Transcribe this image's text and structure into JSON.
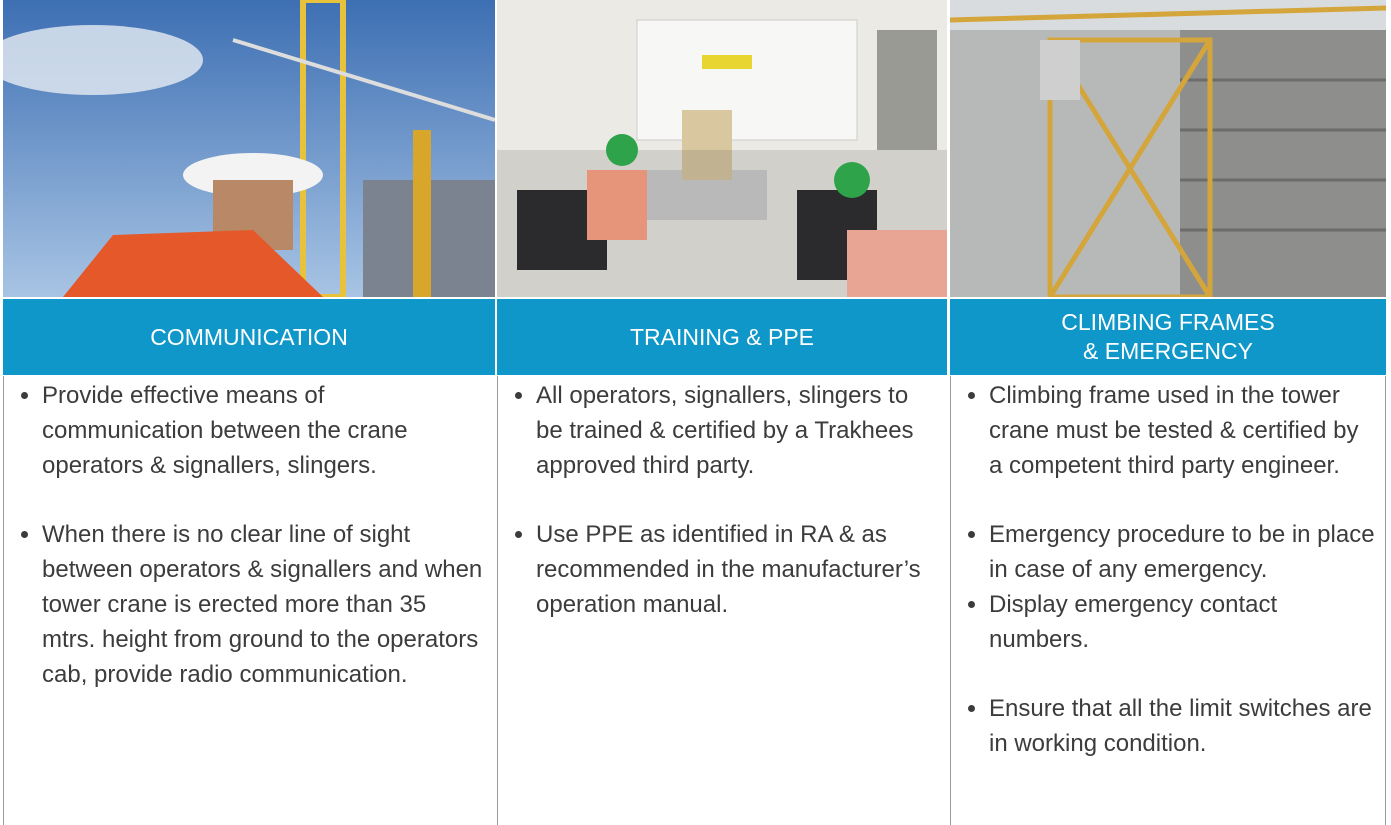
{
  "columns": [
    {
      "header": "COMMUNICATION",
      "bullets": [
        "Provide effective means of communication between the crane operators & signallers, slingers.",
        "When there is no clear line of sight between operators & signallers and when tower crane is erected more than 35 mtrs. height from ground to the operators cab, provide radio communication."
      ]
    },
    {
      "header": "TRAINING & PPE",
      "bullets": [
        "All operators, signallers, slingers to be trained & certified by a Trakhees approved third party.",
        "Use PPE as identified in RA & as recommended in the manufacturer’s operation manual."
      ]
    },
    {
      "header": "CLIMBING FRAMES\n& EMERGENCY",
      "bullets": [
        "Climbing frame used in the tower crane must be tested & certified by a competent third party engineer.",
        "Emergency procedure to be in place in case of any emergency.",
        "Display emergency contact numbers.",
        "Ensure that all the limit switches are in working condition."
      ]
    }
  ]
}
